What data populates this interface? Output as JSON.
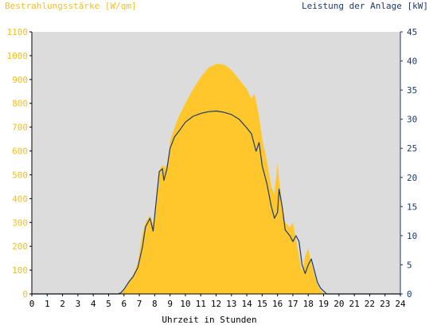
{
  "colors": {
    "irradiance_fill": "#ffc72c",
    "irradiance_text": "#f6bf1c",
    "power_line": "#1b3a6b",
    "plot_background": "#dcdcdc",
    "axis_text": "#000000"
  },
  "chart_data": {
    "type": "area",
    "y_left_label": "Bestrahlungsstärke [W/qm]",
    "y_right_label": "Leistung der Anlage [kW]",
    "x_label": "Uhrzeit in Stunden",
    "xlim": [
      0,
      24
    ],
    "ylim_left": [
      0,
      1100
    ],
    "ylim_right": [
      0,
      45
    ],
    "x_ticks": [
      "0",
      "1",
      "2",
      "3",
      "4",
      "5",
      "6",
      "7",
      "8",
      "9",
      "10",
      "11",
      "12",
      "13",
      "14",
      "15",
      "16",
      "17",
      "18",
      "19",
      "20",
      "21",
      "22",
      "23",
      "24"
    ],
    "y_left_ticks": [
      "0",
      "100",
      "200",
      "300",
      "400",
      "500",
      "600",
      "700",
      "800",
      "900",
      "1000",
      "1100"
    ],
    "y_right_ticks": [
      "0",
      "5",
      "10",
      "15",
      "20",
      "25",
      "30",
      "35",
      "40",
      "45"
    ],
    "grid": false,
    "series": [
      {
        "name": "Bestrahlungsstärke [W/qm]",
        "axis": "left",
        "x": [
          0,
          5.5,
          5.8,
          6.0,
          6.3,
          6.6,
          6.9,
          7.2,
          7.4,
          7.7,
          7.9,
          8.1,
          8.3,
          8.5,
          8.7,
          8.9,
          9.0,
          9.3,
          9.6,
          10.0,
          10.5,
          11.0,
          11.5,
          12.0,
          12.3,
          12.6,
          13.0,
          13.5,
          14.0,
          14.3,
          14.5,
          14.7,
          14.9,
          15.0,
          15.3,
          15.6,
          15.8,
          16.0,
          16.1,
          16.3,
          16.5,
          16.8,
          17.0,
          17.2,
          17.4,
          17.6,
          17.8,
          18.0,
          18.2,
          18.4,
          18.6,
          18.8,
          19.0,
          19.2,
          19.5,
          24
        ],
        "y": [
          0,
          0,
          5,
          20,
          50,
          80,
          130,
          250,
          300,
          330,
          290,
          380,
          520,
          540,
          530,
          560,
          640,
          700,
          750,
          800,
          860,
          910,
          950,
          965,
          965,
          960,
          940,
          900,
          860,
          820,
          840,
          780,
          700,
          650,
          560,
          450,
          420,
          550,
          480,
          380,
          300,
          280,
          300,
          230,
          160,
          90,
          160,
          190,
          130,
          80,
          40,
          15,
          5,
          0,
          0,
          0
        ]
      },
      {
        "name": "Leistung der Anlage [kW]",
        "axis": "right",
        "x": [
          0,
          5.6,
          5.8,
          6.0,
          6.3,
          6.6,
          6.9,
          7.2,
          7.4,
          7.7,
          7.9,
          8.1,
          8.3,
          8.5,
          8.6,
          8.8,
          9.0,
          9.3,
          9.6,
          10.0,
          10.5,
          11.0,
          11.5,
          12.0,
          12.5,
          13.0,
          13.5,
          14.0,
          14.3,
          14.6,
          14.8,
          15.0,
          15.3,
          15.6,
          15.8,
          16.0,
          16.1,
          16.3,
          16.5,
          16.8,
          17.0,
          17.2,
          17.4,
          17.6,
          17.8,
          18.0,
          18.2,
          18.4,
          18.6,
          18.8,
          19.0,
          19.2,
          19.5,
          24
        ],
        "y": [
          0,
          0,
          0.2,
          0.8,
          2,
          3,
          4.5,
          8,
          11.5,
          13,
          10.8,
          16,
          21,
          21.5,
          19.5,
          21.5,
          25,
          27,
          28,
          29.5,
          30.5,
          31,
          31.3,
          31.4,
          31.2,
          30.8,
          30,
          28.5,
          27.5,
          24.5,
          26,
          22,
          19,
          15,
          13,
          14,
          18,
          15,
          11,
          10,
          9,
          10,
          9,
          5,
          3.5,
          5,
          6,
          4,
          2,
          1,
          0.5,
          0,
          0,
          0
        ]
      }
    ]
  }
}
